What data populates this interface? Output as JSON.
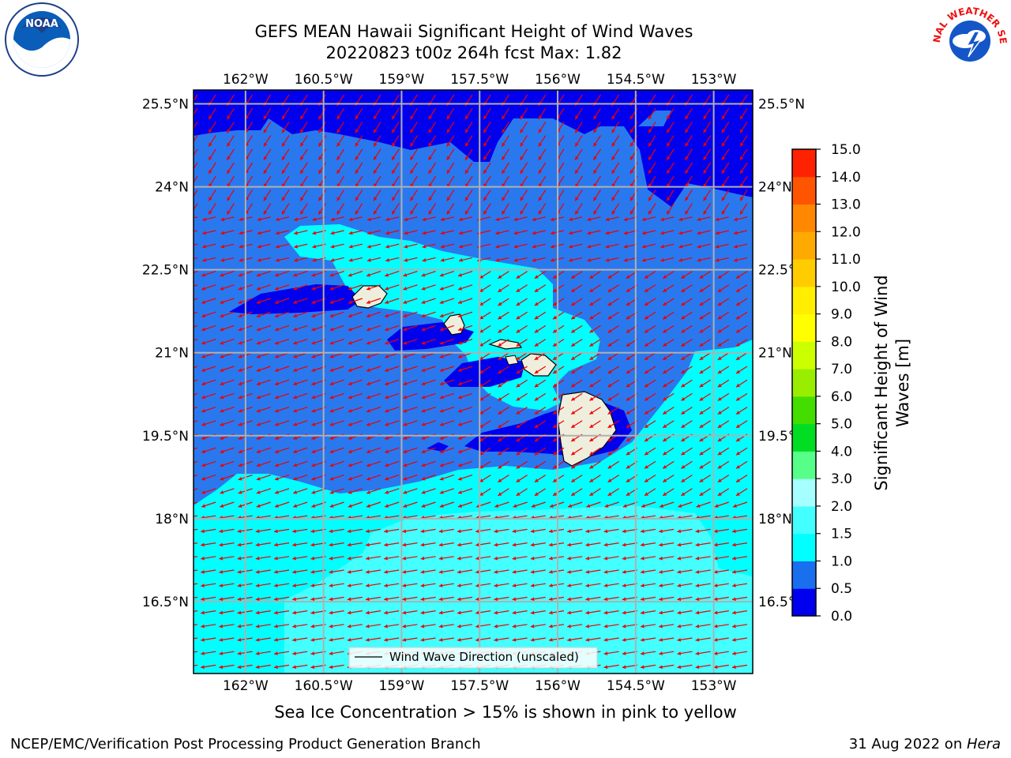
{
  "title": {
    "line1": "GEFS MEAN Hawaii Significant Height of Wind Waves",
    "line2": "20220823 t00z 264h fcst   Max: 1.82"
  },
  "axes": {
    "lon_labels": [
      "162°W",
      "160.5°W",
      "159°W",
      "157.5°W",
      "156°W",
      "154.5°W",
      "153°W"
    ],
    "lon_values": [
      -162,
      -160.5,
      -159,
      -157.5,
      -156,
      -154.5,
      -153
    ],
    "lat_labels": [
      "25.5°N",
      "24°N",
      "22.5°N",
      "21°N",
      "19.5°N",
      "18°N",
      "16.5°N"
    ],
    "lat_values": [
      25.5,
      24,
      22.5,
      21,
      19.5,
      18,
      16.5
    ],
    "lon_range": [
      -163,
      -152.25
    ],
    "lat_range": [
      15.2,
      25.75
    ],
    "grid": true
  },
  "colorbar": {
    "label": "Significant Height of Wind Waves [m]",
    "label_line1": "Significant Height of Wind",
    "label_line2": "Waves [m]",
    "levels": [
      0.0,
      0.5,
      1.0,
      1.5,
      2.0,
      3.0,
      4.0,
      5.0,
      6.0,
      7.0,
      8.0,
      9.0,
      10.0,
      11.0,
      12.0,
      13.0,
      14.0,
      15.0
    ],
    "tick_labels": [
      "0.0",
      "0.5",
      "1.0",
      "1.5",
      "2.0",
      "3.0",
      "4.0",
      "5.0",
      "6.0",
      "7.0",
      "8.0",
      "9.0",
      "10.0",
      "11.0",
      "12.0",
      "13.0",
      "14.0",
      "15.0"
    ],
    "colors": [
      "#0000ee",
      "#1a6fee",
      "#00ffff",
      "#44ffff",
      "#a6ffff",
      "#55ff88",
      "#00dd22",
      "#44dd00",
      "#99ee00",
      "#ccff00",
      "#ffff00",
      "#ffee00",
      "#ffcc00",
      "#ffaa00",
      "#ff8800",
      "#ff5500",
      "#ff2200"
    ]
  },
  "legend": {
    "label": "Wind Wave Direction (unscaled)"
  },
  "colors": {
    "arrow": "#ee0000",
    "land": "#efeedd",
    "deep": "#0000ee",
    "mid": "#2a78ee",
    "cyan": "#00ffff",
    "light": "#44ffff"
  },
  "note": "Sea Ice Concentration > 15% is shown in pink to yellow",
  "footer": {
    "left": "NCEP/EMC/Verification Post Processing Product Generation Branch",
    "right_prefix": "31 Aug 2022 on ",
    "right_host": "Hera"
  },
  "logos": {
    "noaa_text": "NOAA",
    "nws_text": "NATIONAL WEATHER SERVICE"
  }
}
